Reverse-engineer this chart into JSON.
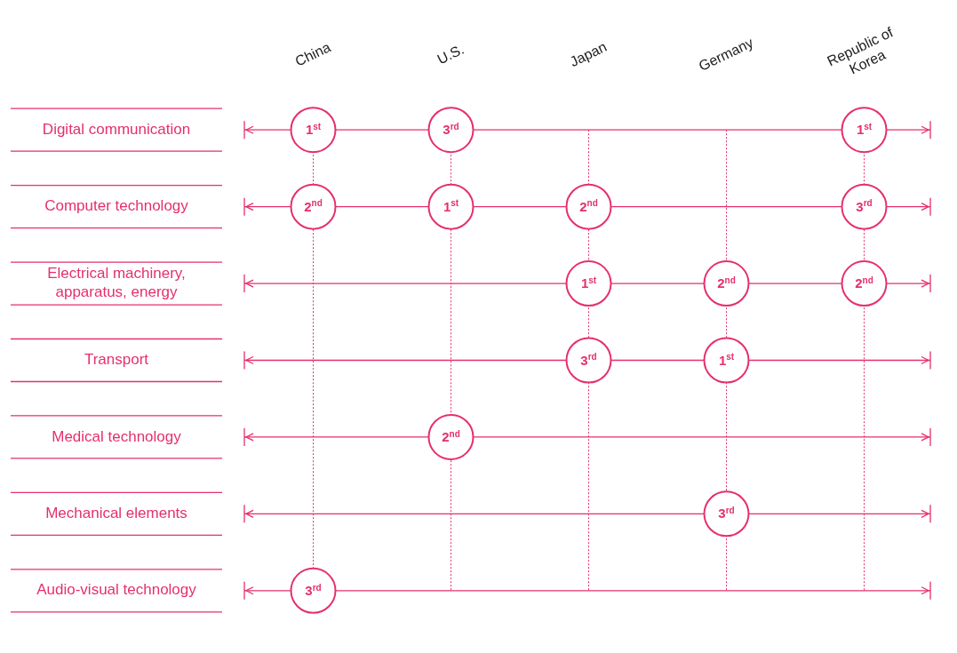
{
  "chart_data": {
    "type": "heatmap",
    "categories": [
      "China",
      "U.S.",
      "Japan",
      "Germany",
      "Republic of Korea"
    ],
    "y_categories": [
      "Digital communication",
      "Computer technology",
      "Electrical machinery, apparatus, energy",
      "Transport",
      "Medical technology",
      "Mechanical elements",
      "Audio-visual technology"
    ],
    "cells": [
      [
        1,
        3,
        null,
        null,
        1
      ],
      [
        2,
        1,
        2,
        null,
        3
      ],
      [
        null,
        null,
        1,
        2,
        2
      ],
      [
        null,
        null,
        3,
        1,
        null
      ],
      [
        null,
        2,
        null,
        null,
        null
      ],
      [
        null,
        null,
        null,
        3,
        null
      ],
      [
        3,
        null,
        null,
        null,
        null
      ]
    ],
    "ref_lines": [
      {
        "axis": "x",
        "value": "China",
        "line_style": "dotted"
      },
      {
        "axis": "x",
        "value": "U.S.",
        "line_style": "dotted"
      },
      {
        "axis": "x",
        "value": "Japan",
        "line_style": "dotted"
      },
      {
        "axis": "x",
        "value": "Germany",
        "line_style": "dotted"
      },
      {
        "axis": "x",
        "value": "Republic of Korea",
        "line_style": "dotted"
      },
      {
        "axis": "y",
        "value": "Digital communication",
        "line_style": "solid"
      },
      {
        "axis": "y",
        "value": "Computer technology",
        "line_style": "solid"
      },
      {
        "axis": "y",
        "value": "Electrical machinery, apparatus, energy",
        "line_style": "solid"
      },
      {
        "axis": "y",
        "value": "Transport",
        "line_style": "solid"
      },
      {
        "axis": "y",
        "value": "Medical technology",
        "line_style": "solid"
      },
      {
        "axis": "y",
        "value": "Mechanical elements",
        "line_style": "solid"
      },
      {
        "axis": "y",
        "value": "Audio-visual technology",
        "line_style": "solid"
      }
    ],
    "cell_labels": [
      [
        "1$^{st}$",
        "3$^{rd}$",
        null,
        null,
        "1$^{st}$"
      ],
      [
        "2$^{nd}$",
        "1$^{st}$",
        "2$^{nd}$",
        null,
        "3$^{rd}$"
      ],
      [
        null,
        null,
        "1$^{st}$",
        "2$^{nd}$",
        "2$^{nd}$"
      ],
      [
        null,
        null,
        "3$^{rd}$",
        "1$^{st}$",
        null
      ],
      [
        null,
        "2$^{nd}$",
        null,
        null,
        null
      ],
      [
        null,
        null,
        null,
        "3$^{rd}$",
        null
      ],
      [
        "3$^{rd}$",
        null,
        null,
        null,
        null
      ]
    ]
  }
}
